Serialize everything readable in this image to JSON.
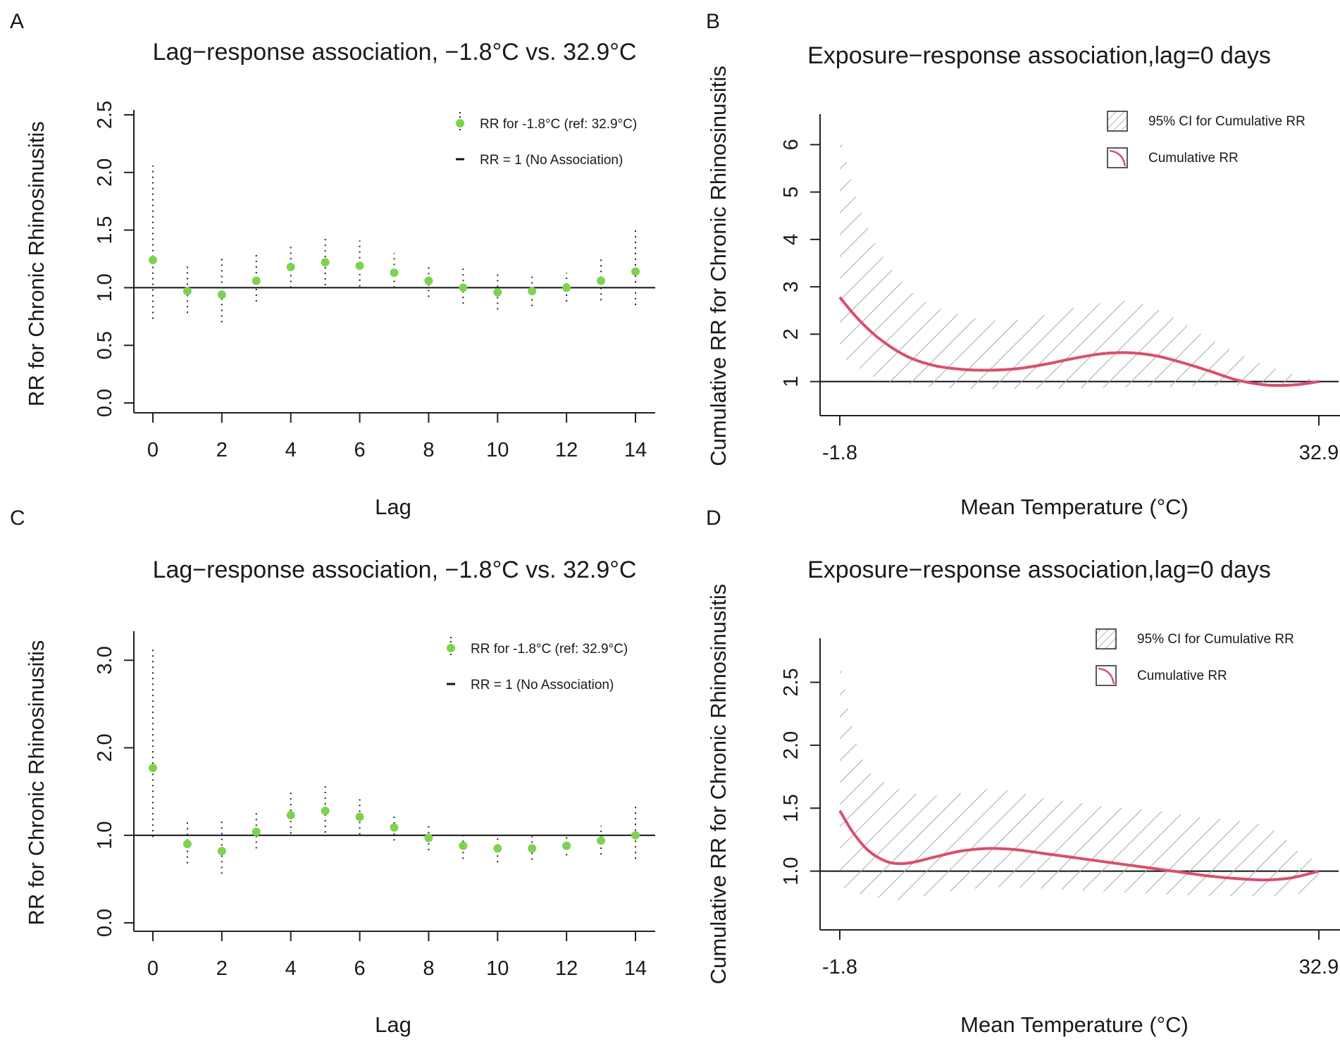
{
  "figure": {
    "panels_order": [
      "A",
      "B",
      "C",
      "D"
    ]
  },
  "chart_data": [
    {
      "panel": "A",
      "type": "scatter",
      "title": "Lag−response association, −1.8°C vs. 32.9°C",
      "xlabel": "Lag",
      "ylabel": "RR for Chronic Rhinosinusitis",
      "xlim": [
        0,
        14
      ],
      "ylim": [
        0,
        2.5
      ],
      "xticks": [
        "0",
        "2",
        "4",
        "6",
        "8",
        "10",
        "12",
        "14"
      ],
      "yticks": [
        "0.0",
        "0.5",
        "1.0",
        "1.5",
        "2.0",
        "2.5"
      ],
      "reference_line": 1,
      "x": [
        0,
        1,
        2,
        3,
        4,
        5,
        6,
        7,
        8,
        9,
        10,
        11,
        12,
        13,
        14
      ],
      "rr": [
        1.24,
        0.97,
        0.94,
        1.06,
        1.18,
        1.22,
        1.19,
        1.13,
        1.06,
        1.0,
        0.96,
        0.97,
        1.0,
        1.06,
        1.14
      ],
      "ci_low": [
        0.73,
        0.78,
        0.7,
        0.88,
        1.0,
        1.02,
        1.01,
        1.0,
        0.92,
        0.86,
        0.81,
        0.84,
        0.88,
        0.89,
        0.85
      ],
      "ci_high": [
        2.06,
        1.21,
        1.28,
        1.29,
        1.38,
        1.45,
        1.41,
        1.3,
        1.21,
        1.17,
        1.14,
        1.12,
        1.13,
        1.27,
        1.53
      ],
      "point_color": "#7dd34f",
      "legend": [
        "RR for -1.8°C (ref: 32.9°C)",
        "RR = 1 (No Association)"
      ]
    },
    {
      "panel": "B",
      "type": "line",
      "title": "Exposure−response association,lag=0 days",
      "xlabel": "Mean Temperature (°C)",
      "ylabel": "Cumulative RR for Chronic Rhinosinusitis",
      "xlim": [
        -1.8,
        32.9
      ],
      "ylim": [
        0.4,
        6.6
      ],
      "xticks": [
        "-1.8",
        "32.9"
      ],
      "yticks": [
        "1",
        "2",
        "3",
        "4",
        "5",
        "6"
      ],
      "reference_line": 1,
      "x": [
        -1.8,
        -0.5,
        1,
        3,
        5,
        7,
        9,
        11,
        13,
        15,
        17,
        19,
        21,
        23,
        25,
        27,
        29,
        30.5,
        31.5,
        32.9
      ],
      "rr": [
        2.78,
        2.33,
        1.92,
        1.54,
        1.34,
        1.26,
        1.24,
        1.27,
        1.36,
        1.48,
        1.58,
        1.61,
        1.55,
        1.4,
        1.22,
        1.03,
        0.93,
        0.92,
        0.94,
        1.0
      ],
      "ci_low": [
        1.55,
        1.3,
        1.05,
        0.95,
        0.88,
        0.85,
        0.84,
        0.85,
        0.85,
        0.86,
        0.87,
        0.88,
        0.89,
        0.9,
        0.91,
        0.92,
        0.93,
        0.94,
        0.96,
        0.98
      ],
      "ci_high": [
        6.2,
        4.8,
        3.8,
        3.0,
        2.6,
        2.4,
        2.3,
        2.3,
        2.4,
        2.55,
        2.65,
        2.7,
        2.55,
        2.25,
        1.9,
        1.6,
        1.35,
        1.2,
        1.12,
        1.02
      ],
      "line_color": "#d94f6e",
      "legend": [
        "95% CI for Cumulative RR",
        "Cumulative RR"
      ]
    },
    {
      "panel": "C",
      "type": "scatter",
      "title": "Lag−response association, −1.8°C vs. 32.9°C",
      "xlabel": "Lag",
      "ylabel": "RR for Chronic Rhinosinusitis",
      "xlim": [
        0,
        14
      ],
      "ylim": [
        0,
        3.3
      ],
      "xticks": [
        "0",
        "2",
        "4",
        "6",
        "8",
        "10",
        "12",
        "14"
      ],
      "yticks": [
        "0.0",
        "1.0",
        "2.0",
        "3.0"
      ],
      "reference_line": 1,
      "x": [
        0,
        1,
        2,
        3,
        4,
        5,
        6,
        7,
        8,
        9,
        10,
        11,
        12,
        13,
        14
      ],
      "rr": [
        1.77,
        0.9,
        0.82,
        1.04,
        1.23,
        1.28,
        1.21,
        1.09,
        0.97,
        0.88,
        0.85,
        0.85,
        0.88,
        0.94,
        1.0
      ],
      "ci_low": [
        0.98,
        0.68,
        0.56,
        0.85,
        1.02,
        1.03,
        1.01,
        0.94,
        0.83,
        0.73,
        0.69,
        0.72,
        0.77,
        0.78,
        0.73
      ],
      "ci_high": [
        3.16,
        1.19,
        1.17,
        1.28,
        1.49,
        1.57,
        1.43,
        1.24,
        1.11,
        1.04,
        1.0,
        0.99,
        1.0,
        1.11,
        1.33
      ],
      "point_color": "#7dd34f",
      "legend": [
        "RR for -1.8°C (ref: 32.9°C)",
        "RR = 1 (No Association)"
      ]
    },
    {
      "panel": "D",
      "type": "line",
      "title": "Exposure−response association,lag=0 days",
      "xlabel": "Mean Temperature (°C)",
      "ylabel": "Cumulative RR for Chronic Rhinosinusitis",
      "xlim": [
        -1.8,
        32.9
      ],
      "ylim": [
        0.55,
        2.85
      ],
      "xticks": [
        "-1.8",
        "32.9"
      ],
      "yticks": [
        "1.0",
        "1.5",
        "2.0",
        "2.5"
      ],
      "reference_line": 1,
      "x": [
        -1.8,
        -0.8,
        0.3,
        1.5,
        2.5,
        3.5,
        5,
        7,
        9,
        11,
        13,
        15,
        17,
        19,
        21,
        23,
        25,
        27,
        29,
        30.5,
        31.5,
        32.9
      ],
      "rr": [
        1.48,
        1.3,
        1.16,
        1.08,
        1.06,
        1.07,
        1.11,
        1.16,
        1.18,
        1.17,
        1.14,
        1.11,
        1.08,
        1.05,
        1.02,
        0.99,
        0.96,
        0.94,
        0.93,
        0.94,
        0.96,
        1.0
      ],
      "ci_low": [
        0.88,
        0.84,
        0.8,
        0.78,
        0.77,
        0.78,
        0.82,
        0.85,
        0.87,
        0.87,
        0.86,
        0.85,
        0.84,
        0.83,
        0.82,
        0.81,
        0.8,
        0.8,
        0.8,
        0.81,
        0.82,
        0.86
      ],
      "ci_high": [
        2.68,
        2.1,
        1.8,
        1.7,
        1.65,
        1.62,
        1.6,
        1.62,
        1.65,
        1.63,
        1.58,
        1.55,
        1.52,
        1.5,
        1.48,
        1.45,
        1.42,
        1.4,
        1.36,
        1.25,
        1.15,
        1.07
      ],
      "line_color": "#d94f6e",
      "legend": [
        "95% CI for Cumulative RR",
        "Cumulative RR"
      ]
    }
  ]
}
